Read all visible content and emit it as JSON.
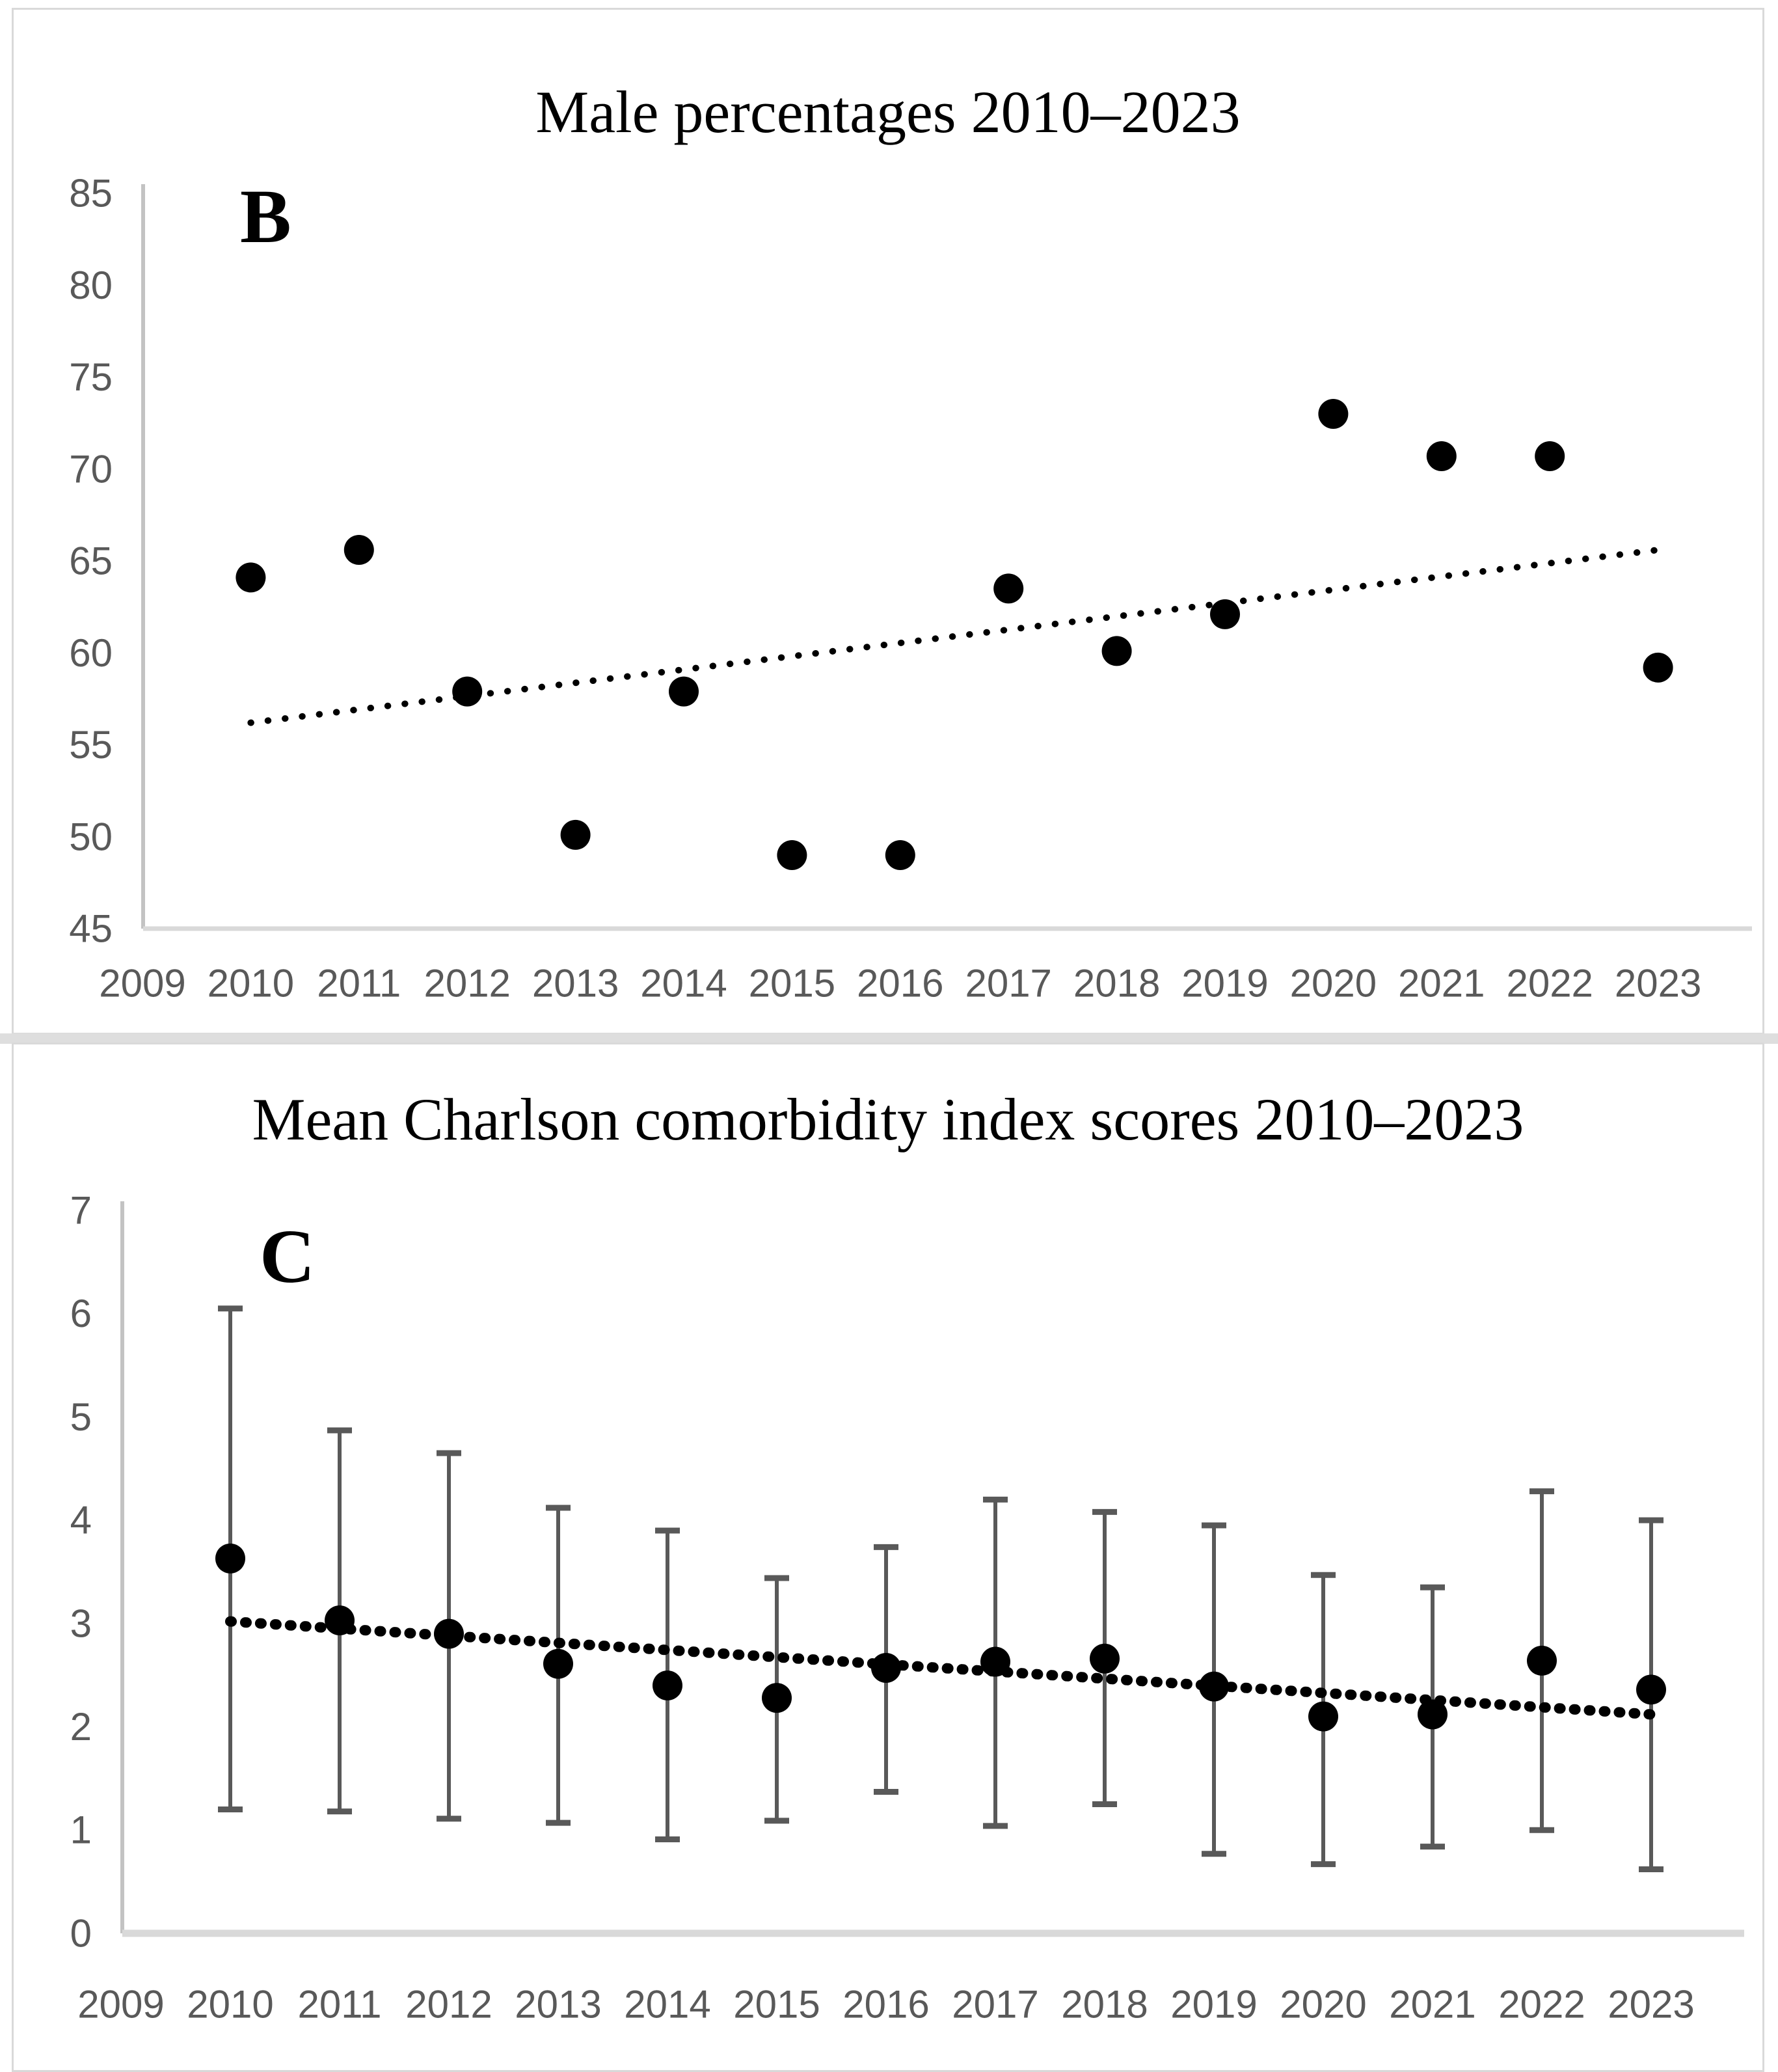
{
  "colors": {
    "dot": "#000000",
    "trendline": "#000000",
    "error_bar": "#595959",
    "tick_label": "#595959",
    "y_axis_line": "#c3c3c3",
    "x_axis_line": "#d9d9d9",
    "panel_border": "#d9d9d9"
  },
  "chart_data": [
    {
      "id": "B",
      "type": "scatter",
      "panel_label": "B",
      "title": "Male percentages 2010–2023",
      "legend_position": "none",
      "grid": false,
      "x_tick_labels": [
        "2009",
        "2010",
        "2011",
        "2012",
        "2013",
        "2014",
        "2015",
        "2016",
        "2017",
        "2018",
        "2019",
        "2020",
        "2021",
        "2022",
        "2023"
      ],
      "y_ticks": [
        45,
        50,
        55,
        60,
        65,
        70,
        75,
        80,
        85
      ],
      "ylim": [
        45,
        85
      ],
      "years": [
        2010,
        2011,
        2012,
        2013,
        2014,
        2015,
        2016,
        2017,
        2018,
        2019,
        2020,
        2021,
        2022,
        2023
      ],
      "values": [
        64.1,
        65.6,
        57.9,
        50.1,
        57.9,
        49.0,
        49.0,
        63.5,
        60.1,
        62.1,
        73.0,
        70.7,
        70.7,
        59.2
      ],
      "trendline": {
        "style": "dotted",
        "x_start": 2010,
        "y_start": 56.2,
        "x_end": 2023,
        "y_end": 65.6
      }
    },
    {
      "id": "C",
      "type": "scatter-errorbar",
      "panel_label": "C",
      "title": "Mean Charlson comorbidity index scores 2010–2023",
      "legend_position": "none",
      "grid": false,
      "x_tick_labels": [
        "2009",
        "2010",
        "2011",
        "2012",
        "2013",
        "2014",
        "2015",
        "2016",
        "2017",
        "2018",
        "2019",
        "2020",
        "2021",
        "2022",
        "2023"
      ],
      "y_ticks": [
        0,
        1,
        2,
        3,
        4,
        5,
        6,
        7
      ],
      "ylim": [
        0,
        7
      ],
      "years": [
        2010,
        2011,
        2012,
        2013,
        2014,
        2015,
        2016,
        2017,
        2018,
        2019,
        2020,
        2021,
        2022,
        2023
      ],
      "values": [
        3.63,
        3.03,
        2.9,
        2.61,
        2.4,
        2.28,
        2.57,
        2.63,
        2.66,
        2.39,
        2.1,
        2.12,
        2.64,
        2.36
      ],
      "ci_low": [
        1.2,
        1.18,
        1.11,
        1.07,
        0.91,
        1.09,
        1.37,
        1.04,
        1.25,
        0.77,
        0.67,
        0.84,
        1.0,
        0.62
      ],
      "ci_high": [
        6.05,
        4.87,
        4.65,
        4.12,
        3.9,
        3.44,
        3.74,
        4.2,
        4.08,
        3.95,
        3.47,
        3.35,
        4.28,
        4.0
      ],
      "trendline": {
        "style": "dotted",
        "x_start": 2010,
        "y_start": 3.02,
        "x_end": 2023,
        "y_end": 2.12
      }
    }
  ]
}
